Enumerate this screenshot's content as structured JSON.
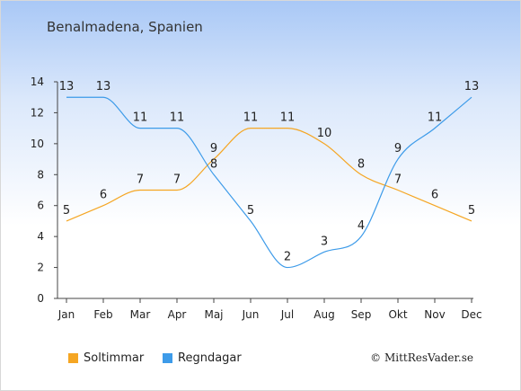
{
  "header": {
    "title": "Benalmadena, Spanien"
  },
  "footer": {
    "copyright": "© MittResVader.se"
  },
  "chart_data": {
    "type": "line",
    "title": "Benalmadena, Spanien",
    "xlabel": "",
    "ylabel": "",
    "categories": [
      "Jan",
      "Feb",
      "Mar",
      "Apr",
      "Maj",
      "Jun",
      "Jul",
      "Aug",
      "Sep",
      "Okt",
      "Nov",
      "Dec"
    ],
    "ylim": [
      0,
      14
    ],
    "yticks": [
      0,
      2,
      4,
      6,
      8,
      10,
      12,
      14
    ],
    "grid": false,
    "legend_position": "bottom",
    "series": [
      {
        "name": "Soltimmar",
        "color": "#f5a623",
        "values": [
          5,
          6,
          7,
          7,
          9,
          11,
          11,
          10,
          8,
          7,
          6,
          5
        ]
      },
      {
        "name": "Regndagar",
        "color": "#3d9be9",
        "values": [
          13,
          13,
          11,
          11,
          8,
          5,
          2,
          3,
          4,
          9,
          11,
          13
        ]
      }
    ]
  }
}
